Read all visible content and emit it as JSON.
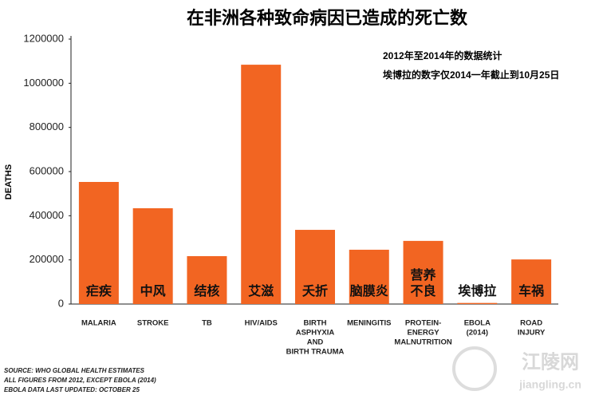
{
  "chart_data": {
    "type": "bar",
    "title": "在非洲各种致命病因已造成的死亡数",
    "annotations": [
      "2012年至2014年的数据统计",
      "埃博拉的数字仅2014一年截止到10月25日"
    ],
    "ylabel": "DEATHS",
    "categories": [
      [
        "MALARIA"
      ],
      [
        "STROKE"
      ],
      [
        "TB"
      ],
      [
        "HIV/AIDS"
      ],
      [
        "BIRTH",
        "ASPHYXIA",
        "AND",
        "BIRTH TRAUMA"
      ],
      [
        "MENINGITIS"
      ],
      [
        "PROTEIN-",
        "ENERGY",
        "MALNUTRITION"
      ],
      [
        "EBOLA",
        "(2014)"
      ],
      [
        "ROAD",
        "INJURY"
      ]
    ],
    "bar_labels": [
      [
        "疟疾"
      ],
      [
        "中风"
      ],
      [
        "结核"
      ],
      [
        "艾滋"
      ],
      [
        "夭折"
      ],
      [
        "脑膜炎"
      ],
      [
        "营养",
        "不良"
      ],
      [
        "埃博拉"
      ],
      [
        "车祸"
      ]
    ],
    "values": [
      553000,
      434000,
      217000,
      1084000,
      336000,
      246000,
      286000,
      4900,
      202000
    ],
    "color": "#f26522",
    "ylim": [
      0,
      1200000
    ],
    "yticks": [
      0,
      200000,
      400000,
      600000,
      800000,
      1000000,
      1200000
    ],
    "grid": false,
    "source": [
      "SOURCE: WHO GLOBAL HEALTH ESTIMATES",
      "ALL FIGURES FROM 2012, EXCEPT EBOLA (2014)",
      "EBOLA DATA LAST UPDATED: OCTOBER 25"
    ],
    "watermark": [
      "江陵网",
      "jiangling.cn"
    ]
  }
}
